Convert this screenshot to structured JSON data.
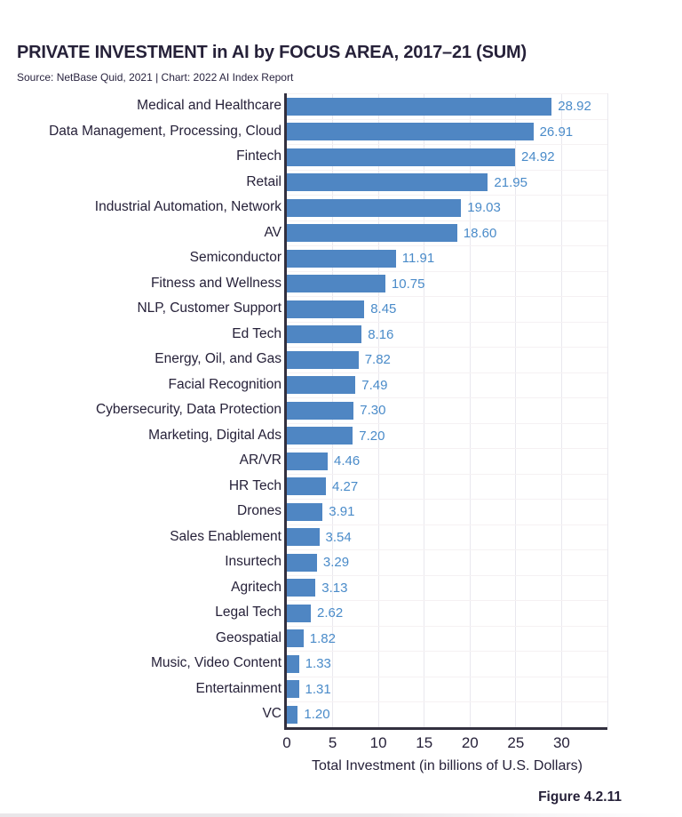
{
  "page": {
    "title": "PRIVATE INVESTMENT in AI by FOCUS AREA, 2017–21 (SUM)",
    "source": "Source: NetBase Quid, 2021 | Chart: 2022 AI Index Report",
    "figure_label": "Figure 4.2.11"
  },
  "chart_data": {
    "type": "bar",
    "orientation": "horizontal",
    "title": "PRIVATE INVESTMENT in AI by FOCUS AREA, 2017–21 (SUM)",
    "source": "Source: NetBase Quid, 2021 | Chart: 2022 AI Index Report",
    "categories": [
      "Medical and Healthcare",
      "Data Management, Processing, Cloud",
      "Fintech",
      "Retail",
      "Industrial Automation, Network",
      "AV",
      "Semiconductor",
      "Fitness and Wellness",
      "NLP, Customer Support",
      "Ed Tech",
      "Energy, Oil, and Gas",
      "Facial Recognition",
      "Cybersecurity, Data Protection",
      "Marketing, Digital Ads",
      "AR/VR",
      "HR Tech",
      "Drones",
      "Sales Enablement",
      "Insurtech",
      "Agritech",
      "Legal Tech",
      "Geospatial",
      "Music, Video Content",
      "Entertainment",
      "VC"
    ],
    "values": [
      28.92,
      26.91,
      24.92,
      21.95,
      19.03,
      18.6,
      11.91,
      10.75,
      8.45,
      8.16,
      7.82,
      7.49,
      7.3,
      7.2,
      4.46,
      4.27,
      3.91,
      3.54,
      3.29,
      3.13,
      2.62,
      1.82,
      1.33,
      1.31,
      1.2
    ],
    "value_labels": [
      "28.92",
      "26.91",
      "24.92",
      "21.95",
      "19.03",
      "18.60",
      "11.91",
      "10.75",
      "8.45",
      "8.16",
      "7.82",
      "7.49",
      "7.30",
      "7.20",
      "4.46",
      "4.27",
      "3.91",
      "3.54",
      "3.29",
      "3.13",
      "2.62",
      "1.82",
      "1.33",
      "1.31",
      "1.20"
    ],
    "xlabel": "Total Investment (in billions of U.S. Dollars)",
    "x_ticks": [
      "0",
      "5",
      "10",
      "15",
      "20",
      "25",
      "30"
    ],
    "x_tick_values": [
      0,
      5,
      10,
      15,
      20,
      25,
      30
    ],
    "xlim": [
      0,
      35
    ],
    "grid": "vertical-light with horizontal row separators",
    "legend": "none",
    "figure_label": "Figure 4.2.11",
    "colors": {
      "bar": "#4f86c3",
      "value_label": "#4a8bc9",
      "text": "#262139",
      "axis_line": "#32303f",
      "gridline": "#e9e8ee",
      "row_separator": "#f5f1f3"
    }
  }
}
